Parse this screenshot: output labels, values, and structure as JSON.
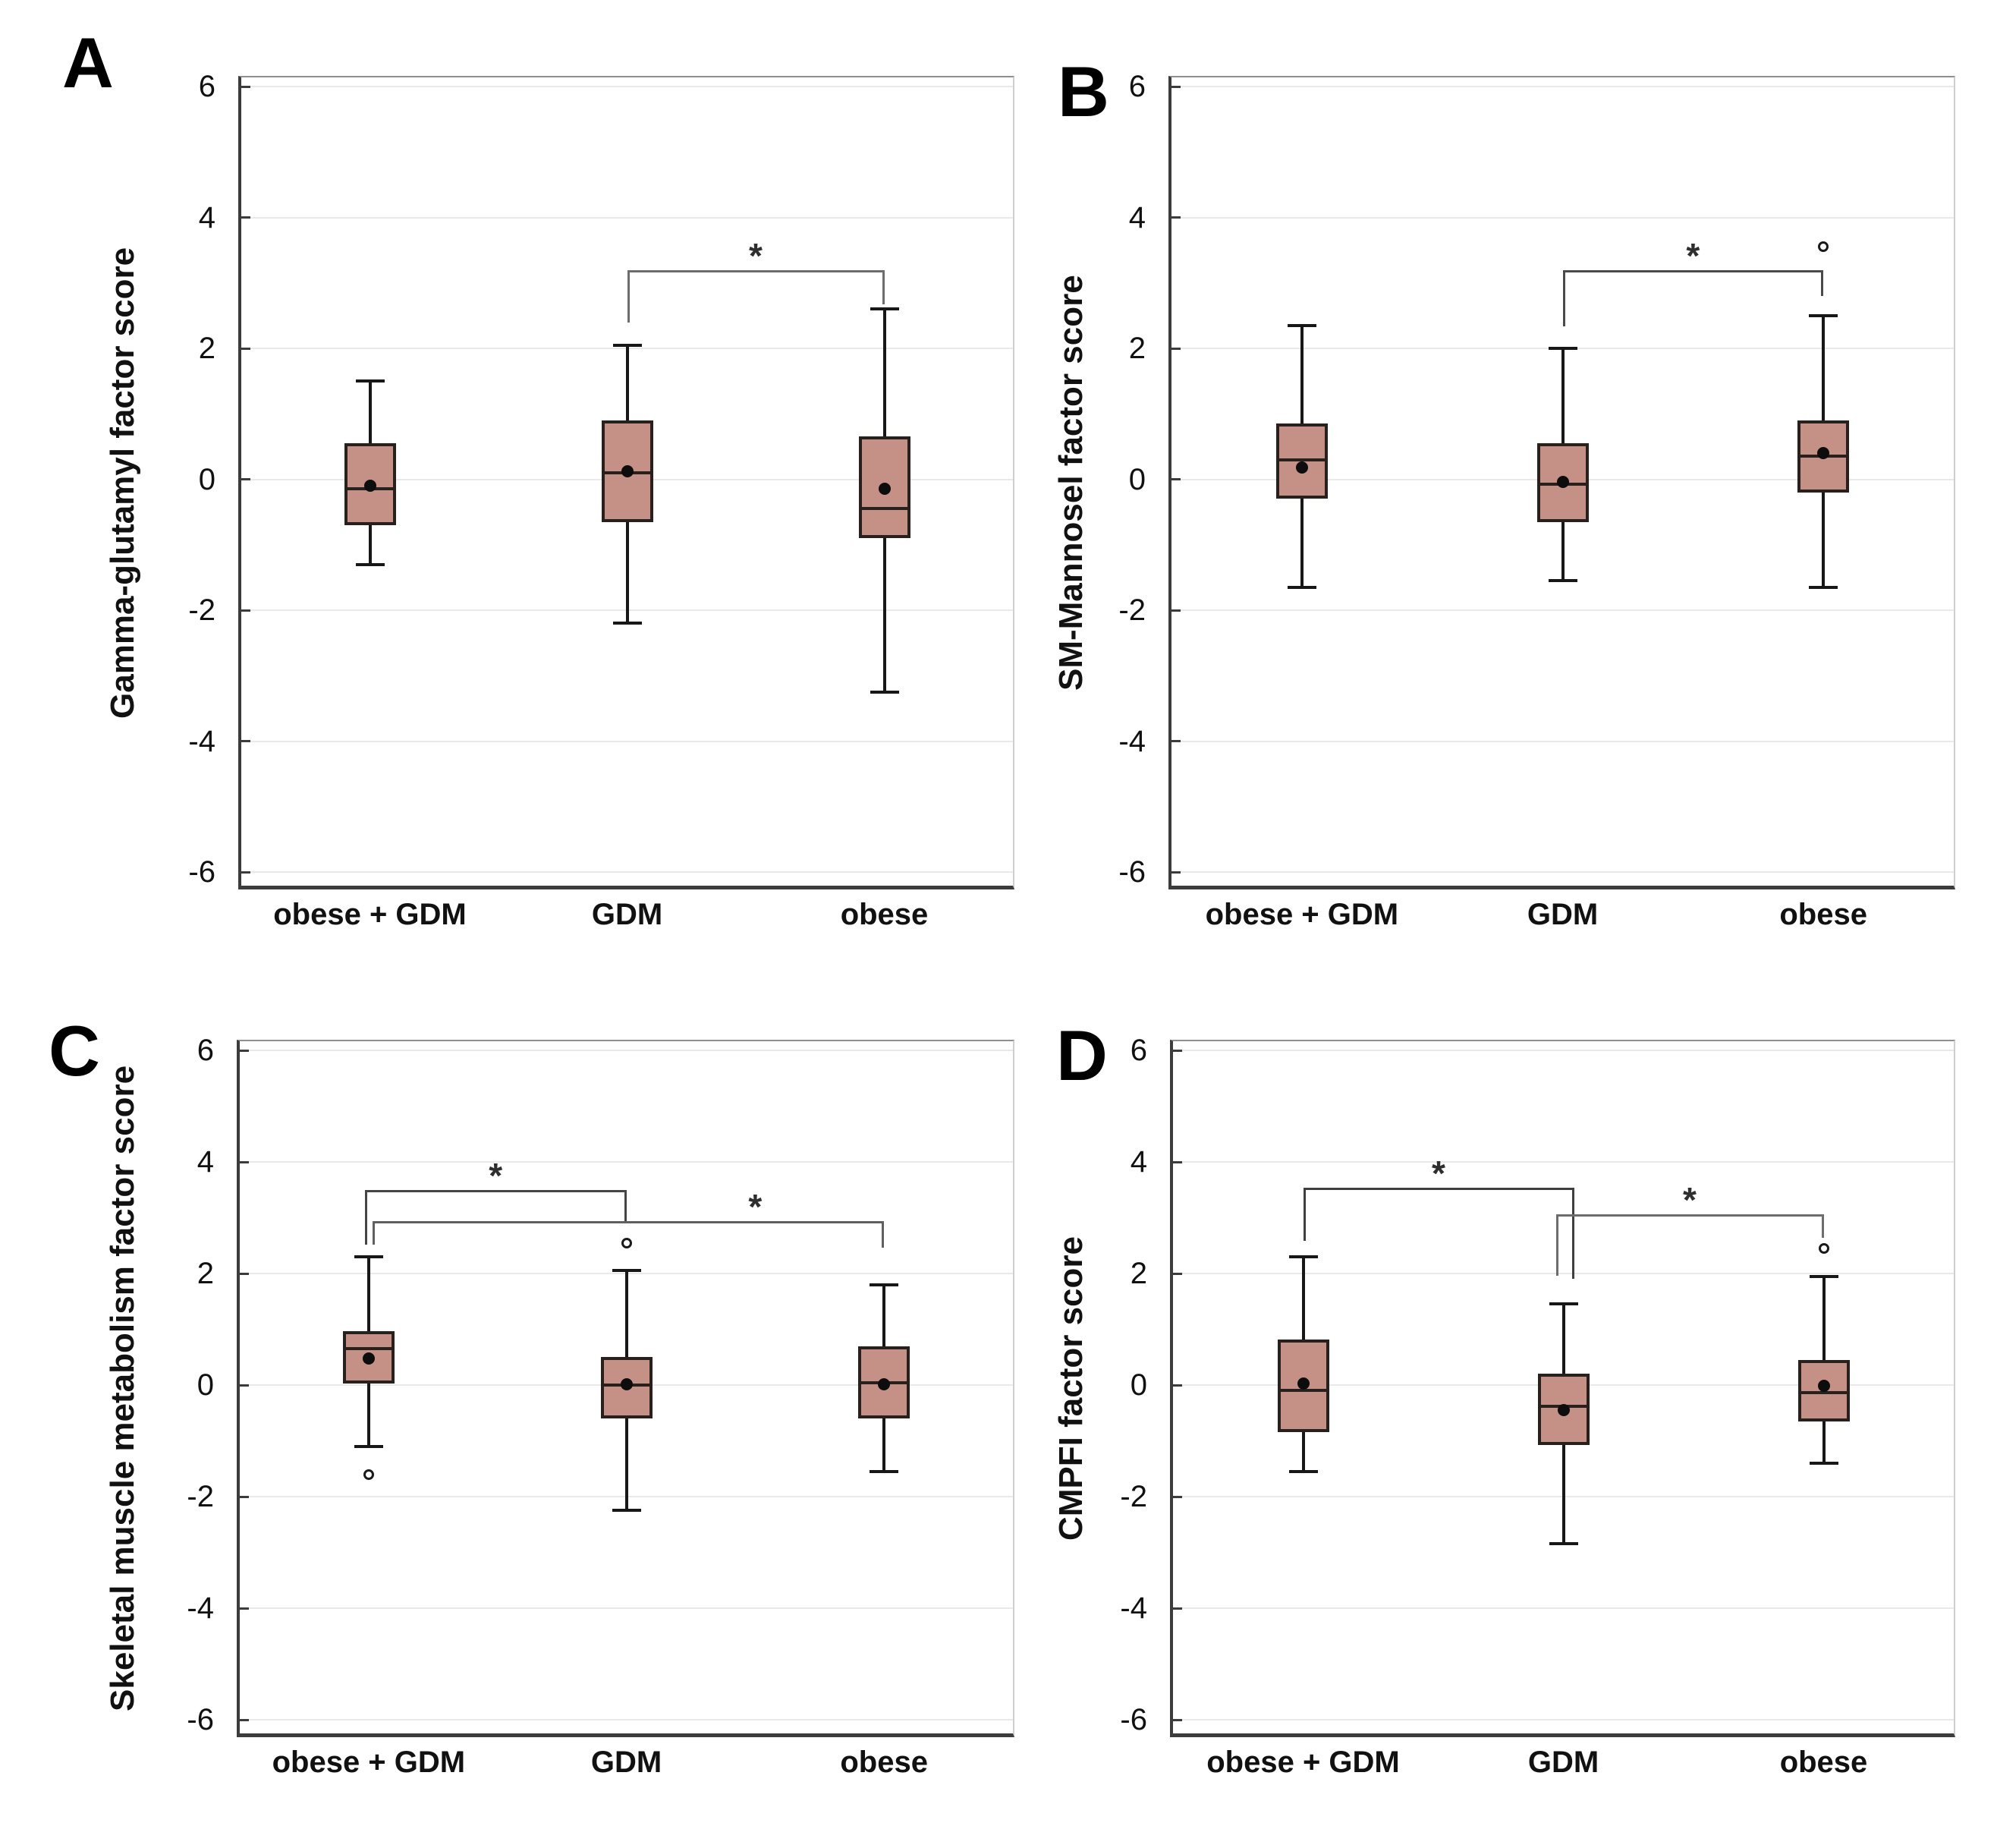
{
  "figure_title": "",
  "style": {
    "background": "#ffffff",
    "box_fill": "#c59086",
    "box_border": "#27201d",
    "whisker_color": "#171717",
    "mean_dot_color": "#0d0d0d",
    "outlier_color": "#1a1a1a",
    "grid_color": "#e9e9e9",
    "axis_color": "#3c3c3c",
    "text_color": "#111111",
    "star_color": "#2e2e2e"
  },
  "chart_data": [
    {
      "panel_letter": "A",
      "type": "box",
      "ylabel": "Gamma-glutamyl factor score",
      "categories": [
        "obese + GDM",
        "GDM",
        "obese"
      ],
      "ylim": [
        -6,
        6
      ],
      "yticks": [
        6,
        4,
        2,
        0,
        -2,
        -4,
        -6
      ],
      "grid": true,
      "series": [
        {
          "category": "obese + GDM",
          "whisker_low": -1.3,
          "q1": -0.7,
          "median": -0.15,
          "mean": -0.1,
          "q3": 0.55,
          "whisker_high": 1.5,
          "outliers": []
        },
        {
          "category": "GDM",
          "whisker_low": -2.2,
          "q1": -0.65,
          "median": 0.1,
          "mean": 0.12,
          "q3": 0.9,
          "whisker_high": 2.05,
          "outliers": []
        },
        {
          "category": "obese",
          "whisker_low": -3.25,
          "q1": -0.9,
          "median": -0.45,
          "mean": -0.15,
          "q3": 0.65,
          "whisker_high": 2.6,
          "outliers": []
        }
      ],
      "significance": [
        {
          "from": 1,
          "to": 2,
          "label": "*",
          "level": 3.2,
          "from_drop": 2.4,
          "to_drop": 2.67,
          "color": "#6d6d6d"
        }
      ]
    },
    {
      "panel_letter": "B",
      "type": "box",
      "ylabel": "SM-Mannosel factor score",
      "categories": [
        "obese + GDM",
        "GDM",
        "obese"
      ],
      "ylim": [
        -6,
        6
      ],
      "yticks": [
        6,
        4,
        2,
        0,
        -2,
        -4,
        -6
      ],
      "grid": true,
      "series": [
        {
          "category": "obese + GDM",
          "whisker_low": -1.65,
          "q1": -0.3,
          "median": 0.3,
          "mean": 0.18,
          "q3": 0.85,
          "whisker_high": 2.35,
          "outliers": []
        },
        {
          "category": "GDM",
          "whisker_low": -1.55,
          "q1": -0.65,
          "median": -0.08,
          "mean": -0.04,
          "q3": 0.55,
          "whisker_high": 2.0,
          "outliers": []
        },
        {
          "category": "obese",
          "whisker_low": -1.65,
          "q1": -0.2,
          "median": 0.35,
          "mean": 0.4,
          "q3": 0.9,
          "whisker_high": 2.5,
          "outliers": [
            3.55
          ]
        }
      ],
      "significance": [
        {
          "from": 1,
          "to": 2,
          "label": "*",
          "level": 3.19,
          "from_drop": 2.34,
          "to_drop": 2.8,
          "color": "#4a4a4a"
        }
      ]
    },
    {
      "panel_letter": "C",
      "type": "box",
      "ylabel": "Skeletal muscle metabolism factor score",
      "categories": [
        "obese + GDM",
        "GDM",
        "obese"
      ],
      "ylim": [
        -6,
        6
      ],
      "yticks": [
        6,
        4,
        2,
        0,
        -2,
        -4,
        -6
      ],
      "grid": true,
      "series": [
        {
          "category": "obese + GDM",
          "whisker_low": -1.1,
          "q1": 0.03,
          "median": 0.65,
          "mean": 0.48,
          "q3": 0.97,
          "whisker_high": 2.3,
          "outliers": [
            -1.6
          ]
        },
        {
          "category": "GDM",
          "whisker_low": -2.25,
          "q1": -0.6,
          "median": 0.0,
          "mean": 0.02,
          "q3": 0.5,
          "whisker_high": 2.05,
          "outliers": [
            2.55
          ]
        },
        {
          "category": "obese",
          "whisker_low": -1.55,
          "q1": -0.6,
          "median": 0.04,
          "mean": 0.02,
          "q3": 0.7,
          "whisker_high": 1.8,
          "outliers": []
        }
      ],
      "significance": [
        {
          "from": 0,
          "to": 1,
          "label": "*",
          "level": 3.5,
          "from_drop": 2.52,
          "to_drop": 2.94,
          "from_dx": -5,
          "color": "#454545"
        },
        {
          "from": 0,
          "to": 2,
          "label": "*",
          "level": 2.94,
          "from_drop": 2.52,
          "to_drop": 2.46,
          "from_dx": 5,
          "star_mid_of": [
            1,
            2
          ],
          "color": "#606060"
        }
      ]
    },
    {
      "panel_letter": "D",
      "type": "box",
      "ylabel": "CMPFI factor score",
      "categories": [
        "obese + GDM",
        "GDM",
        "obese"
      ],
      "ylim": [
        -6,
        6
      ],
      "yticks": [
        6,
        4,
        2,
        0,
        -2,
        -4,
        -6
      ],
      "grid": true,
      "series": [
        {
          "category": "obese + GDM",
          "whisker_low": -1.55,
          "q1": -0.85,
          "median": -0.1,
          "mean": 0.03,
          "q3": 0.82,
          "whisker_high": 2.3,
          "outliers": []
        },
        {
          "category": "GDM",
          "whisker_low": -2.85,
          "q1": -1.08,
          "median": -0.38,
          "mean": -0.45,
          "q3": 0.2,
          "whisker_high": 1.45,
          "outliers": []
        },
        {
          "category": "obese",
          "whisker_low": -1.4,
          "q1": -0.65,
          "median": -0.14,
          "mean": -0.02,
          "q3": 0.45,
          "whisker_high": 1.95,
          "outliers": [
            2.45
          ]
        }
      ],
      "significance": [
        {
          "from": 0,
          "to": 1,
          "label": "*",
          "level": 3.54,
          "from_drop": 2.58,
          "to_drop": 1.9,
          "to_dx": 14,
          "color": "#3f3f3f"
        },
        {
          "from": 1,
          "to": 2,
          "label": "*",
          "level": 3.06,
          "from_drop": 1.96,
          "to_drop": 2.64,
          "from_dx": -10,
          "color": "#6d6d6d"
        }
      ]
    }
  ]
}
